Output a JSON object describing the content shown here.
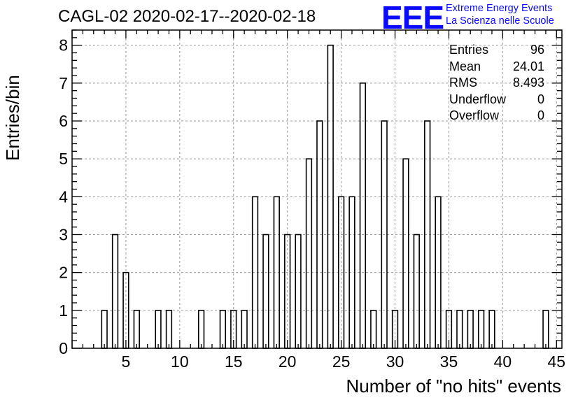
{
  "title": "CAGL-02 2020-02-17--2020-02-18",
  "logo": {
    "mark": "EEE",
    "line1": "Extreme Energy Events",
    "line2": "La Scienza nelle Scuole",
    "color": "#0a0aff"
  },
  "stats": [
    {
      "label": "Entries",
      "value": "96"
    },
    {
      "label": "Mean",
      "value": "24.01"
    },
    {
      "label": "RMS",
      "value": "8.493"
    },
    {
      "label": "Underflow",
      "value": "0"
    },
    {
      "label": "Overflow",
      "value": "0"
    }
  ],
  "chart_data": {
    "type": "bar",
    "title": "CAGL-02 2020-02-17--2020-02-18",
    "xlabel": "Number of \"no hits\" events",
    "ylabel": "Entries/bin",
    "xlim": [
      0,
      45.5
    ],
    "ylim": [
      0,
      8.4
    ],
    "bin_width": 0.5,
    "x_ticks": [
      "5",
      "10",
      "15",
      "20",
      "25",
      "30",
      "35",
      "40",
      "45"
    ],
    "x_tick_values": [
      5,
      10,
      15,
      20,
      25,
      30,
      35,
      40,
      45
    ],
    "y_ticks": [
      "0",
      "1",
      "2",
      "3",
      "4",
      "5",
      "6",
      "7",
      "8"
    ],
    "y_tick_values": [
      0,
      1,
      2,
      3,
      4,
      5,
      6,
      7,
      8
    ],
    "grid": true,
    "bins": [
      {
        "x": 3,
        "count": 1
      },
      {
        "x": 4,
        "count": 3
      },
      {
        "x": 5,
        "count": 2
      },
      {
        "x": 6,
        "count": 1
      },
      {
        "x": 8,
        "count": 1
      },
      {
        "x": 9,
        "count": 1
      },
      {
        "x": 12,
        "count": 1
      },
      {
        "x": 14,
        "count": 1
      },
      {
        "x": 15,
        "count": 1
      },
      {
        "x": 16,
        "count": 1
      },
      {
        "x": 17,
        "count": 4
      },
      {
        "x": 18,
        "count": 3
      },
      {
        "x": 19,
        "count": 4
      },
      {
        "x": 20,
        "count": 3
      },
      {
        "x": 21,
        "count": 3
      },
      {
        "x": 22,
        "count": 5
      },
      {
        "x": 23,
        "count": 6
      },
      {
        "x": 24,
        "count": 8
      },
      {
        "x": 25,
        "count": 4
      },
      {
        "x": 26,
        "count": 4
      },
      {
        "x": 27,
        "count": 7
      },
      {
        "x": 28,
        "count": 1
      },
      {
        "x": 29,
        "count": 6
      },
      {
        "x": 30,
        "count": 1
      },
      {
        "x": 31,
        "count": 5
      },
      {
        "x": 32,
        "count": 3
      },
      {
        "x": 33,
        "count": 6
      },
      {
        "x": 34,
        "count": 4
      },
      {
        "x": 35,
        "count": 1
      },
      {
        "x": 36,
        "count": 1
      },
      {
        "x": 37,
        "count": 1
      },
      {
        "x": 38,
        "count": 1
      },
      {
        "x": 39,
        "count": 1
      },
      {
        "x": 44,
        "count": 1
      }
    ]
  }
}
